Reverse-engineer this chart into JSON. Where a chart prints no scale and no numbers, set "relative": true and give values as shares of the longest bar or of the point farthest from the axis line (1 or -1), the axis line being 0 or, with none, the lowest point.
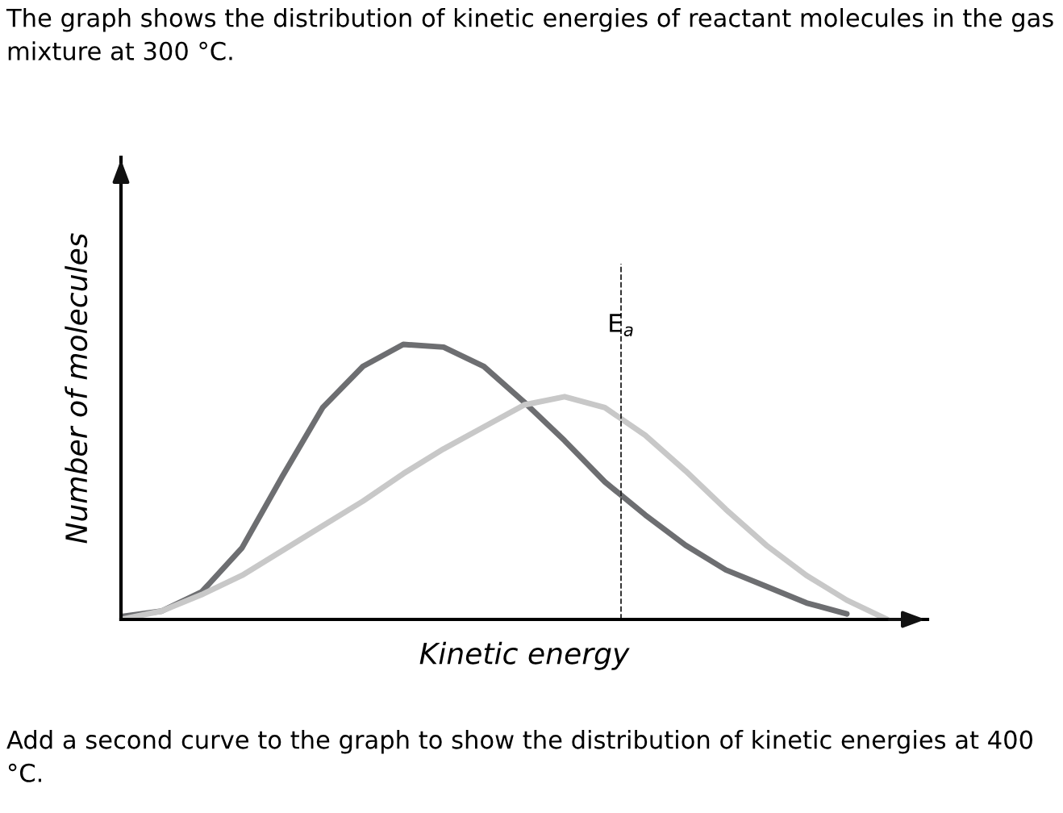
{
  "chart_data": {
    "type": "line",
    "relative": true,
    "title": "The graph shows the distribution of kinetic energies of reactant molecules in the gas mixture at 300 °C.",
    "xlabel": "Kinetic energy",
    "ylabel": "Number of molecules",
    "annotations": [
      "E$_{a}$",
      "Add a second curve to the graph to show the distribution of kinetic energies at 400 °C."
    ],
    "categories": [
      null,
      null,
      null,
      null,
      null,
      null,
      null,
      null,
      null,
      null,
      null,
      null,
      null,
      null,
      null,
      null,
      null,
      null,
      null,
      null
    ],
    "series": [
      {
        "color": "#6d6e71",
        "values": [
          0.01,
          0.03,
          0.1,
          0.26,
          0.52,
          0.77,
          0.92,
          1.0,
          0.99,
          0.92,
          0.79,
          0.65,
          0.5,
          0.38,
          0.27,
          0.18,
          0.12,
          0.06,
          0.02,
          null
        ]
      },
      {
        "color": "#c8c8c8",
        "values": [
          0,
          0.03,
          0.09,
          0.16,
          0.25,
          0.34,
          0.43,
          0.53,
          0.62,
          0.7,
          0.78,
          0.81,
          0.77,
          0.67,
          0.54,
          0.4,
          0.27,
          0.16,
          0.07,
          0
        ]
      }
    ],
    "legend": false,
    "marker": "none",
    "line_style": "solid"
  }
}
